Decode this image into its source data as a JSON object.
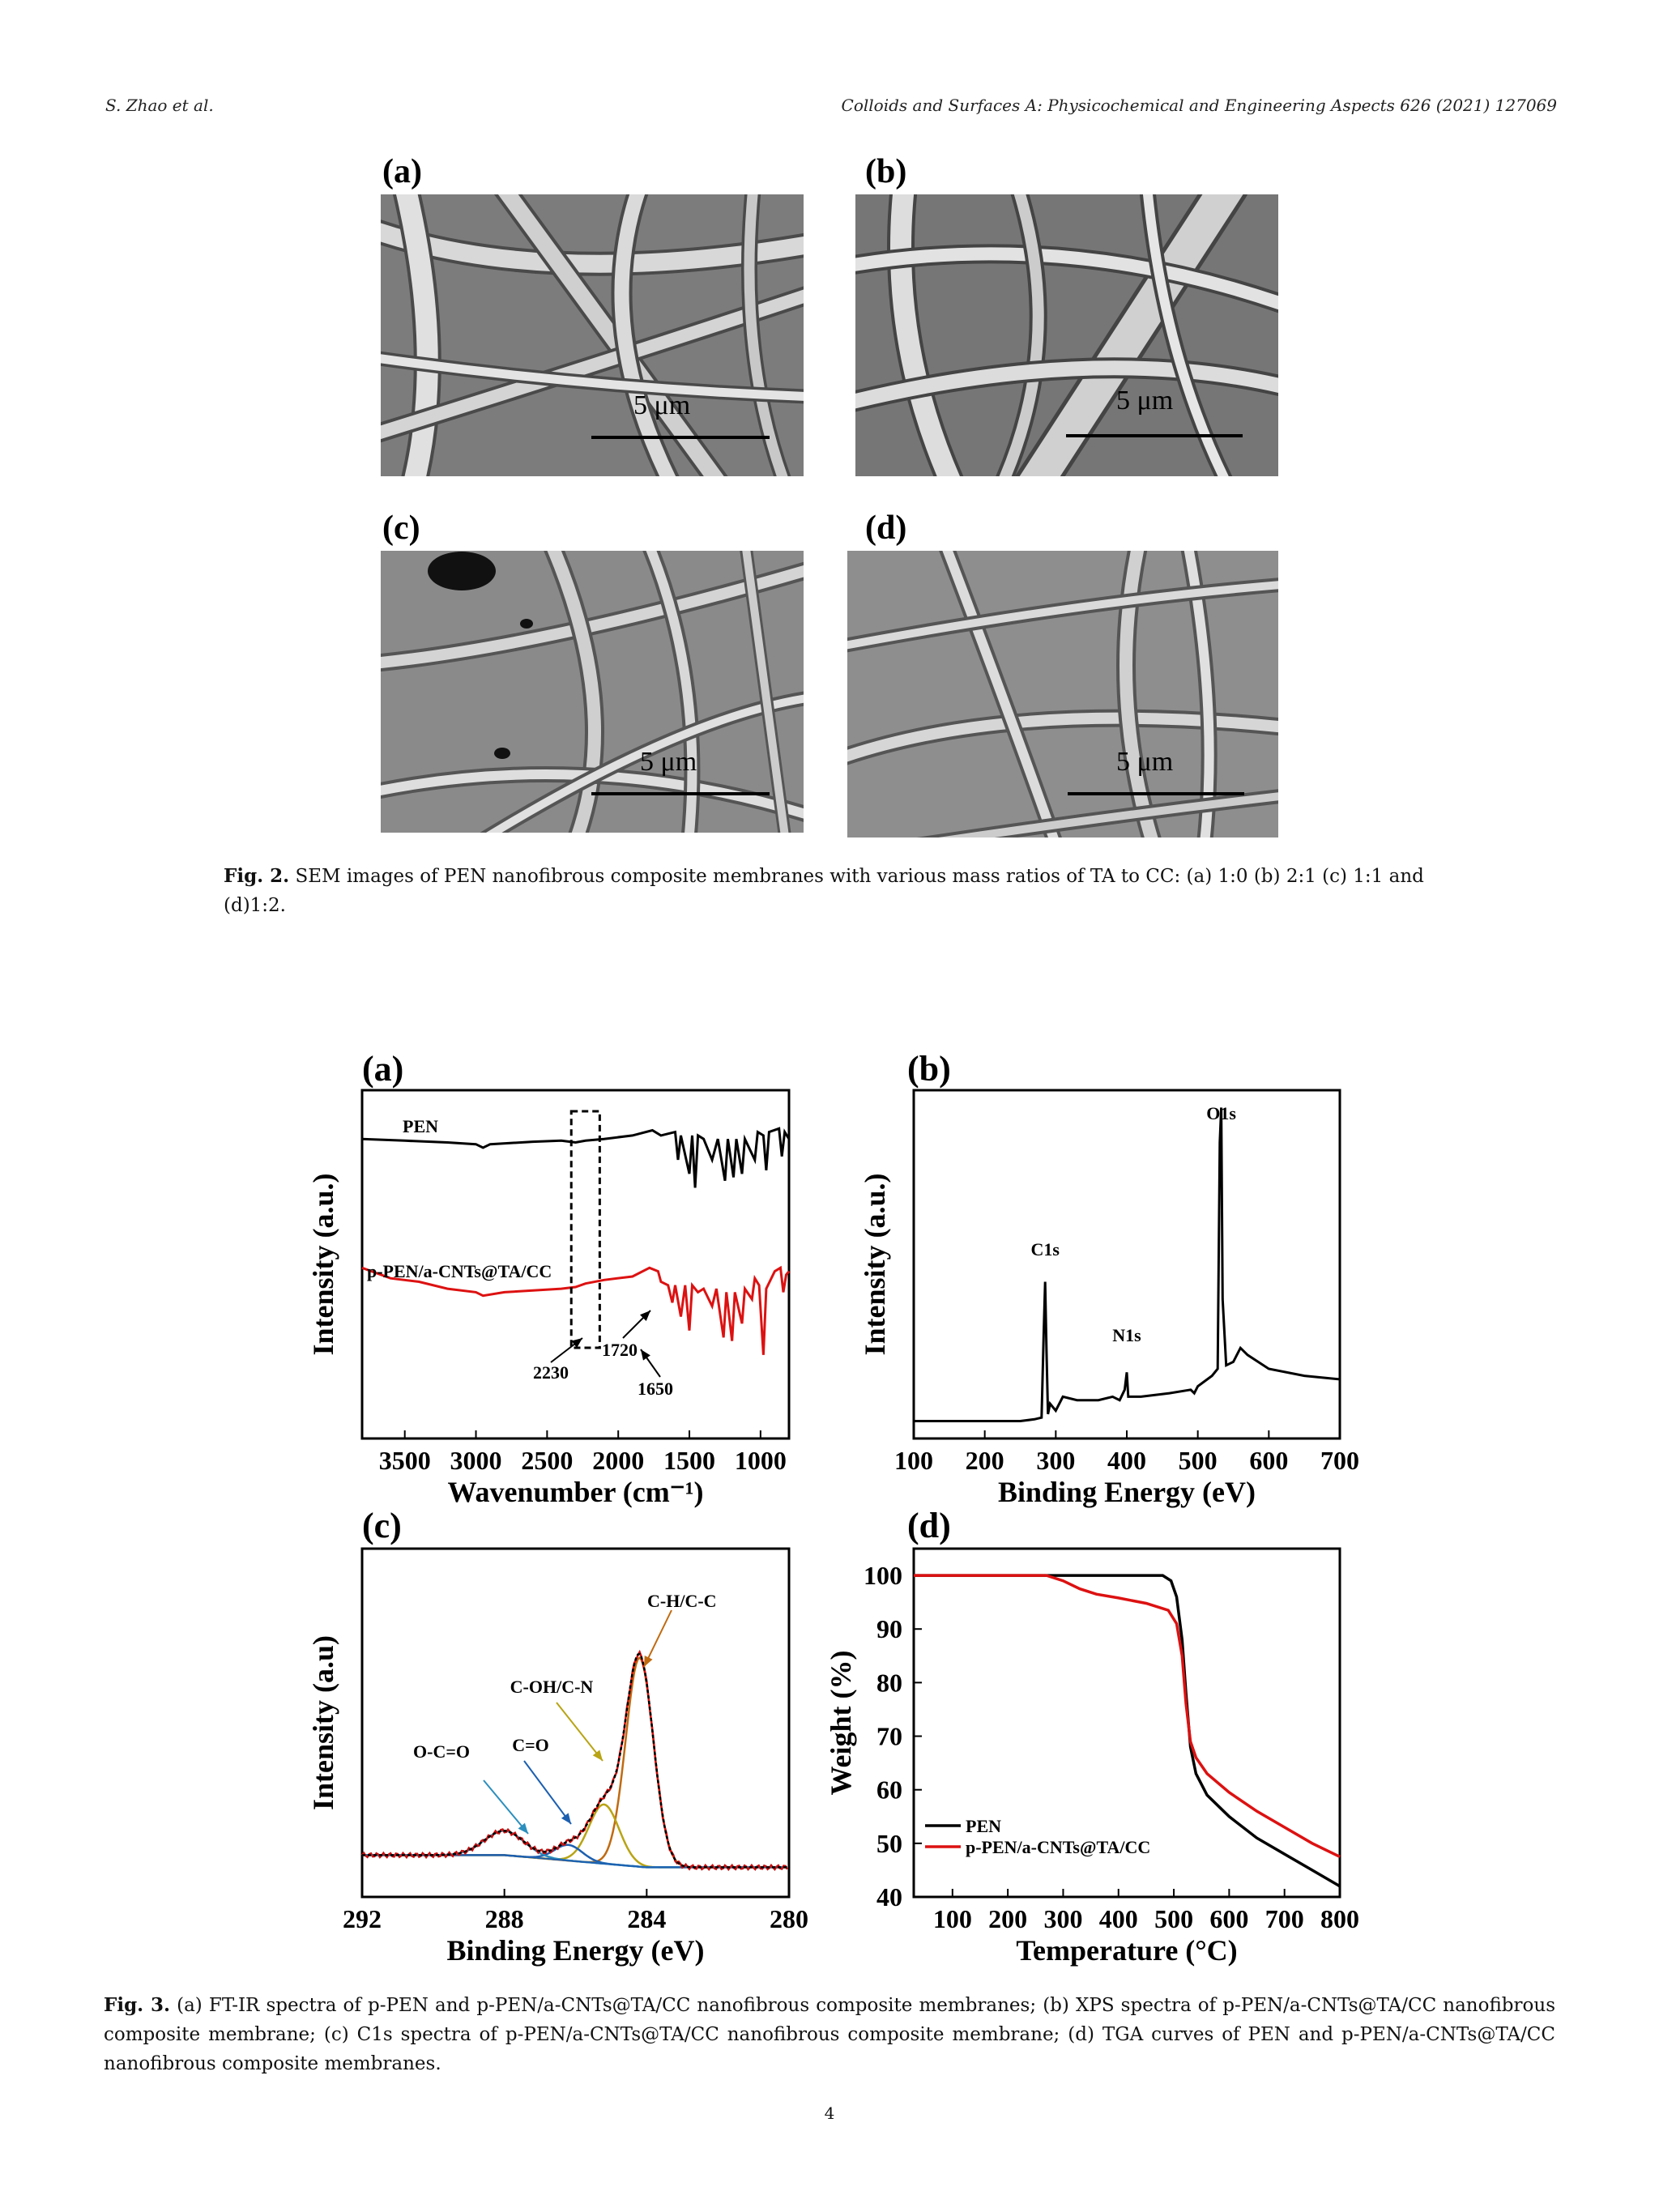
{
  "header": {
    "authors": "S. Zhao et al.",
    "journal": "Colloids and Surfaces A: Physicochemical and Engineering Aspects 626 (2021) 127069"
  },
  "fig2": {
    "panels": [
      {
        "label": "(a)",
        "scale": "5 μm"
      },
      {
        "label": "(b)",
        "scale": "5 μm"
      },
      {
        "label": "(c)",
        "scale": "5 μm"
      },
      {
        "label": "(d)",
        "scale": "5 μm"
      }
    ],
    "caption_label": "Fig. 2.",
    "caption_text": "SEM images of PEN nanofibrous composite membranes with various mass ratios of TA to CC: (a) 1:0 (b) 2:1 (c) 1:1 and (d)1:2."
  },
  "fig3": {
    "caption_label": "Fig. 3.",
    "caption_text": "(a) FT-IR spectra of p-PEN and p-PEN/a-CNTs@TA/CC nanofibrous composite membranes; (b) XPS spectra of p-PEN/a-CNTs@TA/CC nanofibrous composite membrane; (c) C1s spectra of p-PEN/a-CNTs@TA/CC nanofibrous composite membrane; (d) TGA curves of PEN and p-PEN/a-CNTs@TA/CC nanofibrous composite membranes."
  },
  "page_number": "4",
  "chart_data": [
    {
      "id": "a",
      "panel_label": "(a)",
      "type": "line",
      "xlabel": "Wavenumber (cm⁻¹)",
      "ylabel": "Intensity (a.u.)",
      "xlim": [
        3800,
        800
      ],
      "xticks": [
        3500,
        3000,
        2500,
        2000,
        1500,
        1000
      ],
      "series": [
        {
          "name": "PEN",
          "color": "#000000",
          "points": [
            [
              3800,
              0.86
            ],
            [
              3500,
              0.855
            ],
            [
              3200,
              0.85
            ],
            [
              3000,
              0.845
            ],
            [
              2950,
              0.835
            ],
            [
              2900,
              0.845
            ],
            [
              2600,
              0.852
            ],
            [
              2400,
              0.855
            ],
            [
              2300,
              0.85
            ],
            [
              2230,
              0.855
            ],
            [
              2100,
              0.86
            ],
            [
              1900,
              0.87
            ],
            [
              1760,
              0.885
            ],
            [
              1700,
              0.87
            ],
            [
              1600,
              0.88
            ],
            [
              1580,
              0.8
            ],
            [
              1560,
              0.87
            ],
            [
              1500,
              0.76
            ],
            [
              1480,
              0.87
            ],
            [
              1460,
              0.72
            ],
            [
              1440,
              0.87
            ],
            [
              1400,
              0.86
            ],
            [
              1340,
              0.8
            ],
            [
              1300,
              0.86
            ],
            [
              1250,
              0.74
            ],
            [
              1230,
              0.86
            ],
            [
              1190,
              0.75
            ],
            [
              1170,
              0.86
            ],
            [
              1130,
              0.76
            ],
            [
              1110,
              0.86
            ],
            [
              1040,
              0.8
            ],
            [
              1020,
              0.88
            ],
            [
              980,
              0.87
            ],
            [
              960,
              0.77
            ],
            [
              940,
              0.88
            ],
            [
              870,
              0.89
            ],
            [
              850,
              0.81
            ],
            [
              830,
              0.88
            ],
            [
              800,
              0.86
            ]
          ]
        },
        {
          "name": "p-PEN/a-CNTs@TA/CC",
          "color": "#dd1111",
          "points": [
            [
              3800,
              0.49
            ],
            [
              3600,
              0.46
            ],
            [
              3400,
              0.45
            ],
            [
              3200,
              0.43
            ],
            [
              3000,
              0.42
            ],
            [
              2950,
              0.41
            ],
            [
              2800,
              0.42
            ],
            [
              2600,
              0.425
            ],
            [
              2400,
              0.43
            ],
            [
              2300,
              0.435
            ],
            [
              2230,
              0.445
            ],
            [
              2100,
              0.455
            ],
            [
              1900,
              0.465
            ],
            [
              1780,
              0.49
            ],
            [
              1720,
              0.48
            ],
            [
              1700,
              0.45
            ],
            [
              1650,
              0.44
            ],
            [
              1620,
              0.39
            ],
            [
              1600,
              0.44
            ],
            [
              1560,
              0.35
            ],
            [
              1530,
              0.44
            ],
            [
              1500,
              0.31
            ],
            [
              1480,
              0.44
            ],
            [
              1440,
              0.42
            ],
            [
              1400,
              0.43
            ],
            [
              1340,
              0.38
            ],
            [
              1310,
              0.43
            ],
            [
              1260,
              0.29
            ],
            [
              1240,
              0.42
            ],
            [
              1200,
              0.28
            ],
            [
              1180,
              0.42
            ],
            [
              1130,
              0.33
            ],
            [
              1110,
              0.43
            ],
            [
              1060,
              0.4
            ],
            [
              1040,
              0.46
            ],
            [
              1010,
              0.44
            ],
            [
              980,
              0.24
            ],
            [
              960,
              0.43
            ],
            [
              900,
              0.48
            ],
            [
              860,
              0.49
            ],
            [
              840,
              0.42
            ],
            [
              820,
              0.47
            ],
            [
              800,
              0.48
            ]
          ]
        }
      ],
      "annotations": [
        "2230",
        "1720",
        "1650"
      ]
    },
    {
      "id": "b",
      "panel_label": "(b)",
      "type": "line",
      "xlabel": "Binding Energy (eV)",
      "ylabel": "Intensity (a.u.)",
      "xlim": [
        100,
        700
      ],
      "xticks": [
        100,
        200,
        300,
        400,
        500,
        600,
        700
      ],
      "series": [
        {
          "name": "",
          "color": "#000000",
          "points": [
            [
              100,
              0.05
            ],
            [
              150,
              0.05
            ],
            [
              200,
              0.05
            ],
            [
              250,
              0.05
            ],
            [
              270,
              0.055
            ],
            [
              280,
              0.06
            ],
            [
              283,
              0.3
            ],
            [
              285,
              0.45
            ],
            [
              287,
              0.25
            ],
            [
              289,
              0.07
            ],
            [
              292,
              0.1
            ],
            [
              300,
              0.08
            ],
            [
              310,
              0.12
            ],
            [
              330,
              0.11
            ],
            [
              360,
              0.11
            ],
            [
              380,
              0.12
            ],
            [
              390,
              0.11
            ],
            [
              397,
              0.14
            ],
            [
              400,
              0.19
            ],
            [
              402,
              0.12
            ],
            [
              420,
              0.12
            ],
            [
              460,
              0.13
            ],
            [
              490,
              0.14
            ],
            [
              495,
              0.13
            ],
            [
              500,
              0.15
            ],
            [
              520,
              0.18
            ],
            [
              528,
              0.2
            ],
            [
              531,
              0.85
            ],
            [
              533,
              0.95
            ],
            [
              535,
              0.4
            ],
            [
              540,
              0.21
            ],
            [
              550,
              0.22
            ],
            [
              560,
              0.26
            ],
            [
              570,
              0.24
            ],
            [
              600,
              0.2
            ],
            [
              650,
              0.18
            ],
            [
              700,
              0.17
            ]
          ]
        }
      ],
      "annotations": [
        "C1s",
        "N1s",
        "O1s"
      ]
    },
    {
      "id": "c",
      "panel_label": "(c)",
      "type": "line",
      "xlabel": "Binding Energy (eV)",
      "ylabel": "Intensity (a.u)",
      "xlim": [
        292,
        280
      ],
      "xticks": [
        292,
        288,
        284,
        280
      ],
      "series": [
        {
          "name": "raw",
          "color": "#cc1111"
        },
        {
          "name": "fit",
          "color": "#000000"
        },
        {
          "name": "C-H/C-C",
          "color": "#c06a10",
          "center": 284.2,
          "height": 0.6,
          "width": 0.55
        },
        {
          "name": "C-OH/C-N",
          "color": "#b8a414",
          "center": 285.2,
          "height": 0.17,
          "width": 0.6
        },
        {
          "name": "C=O",
          "color": "#1c5fb0",
          "center": 286.2,
          "height": 0.045,
          "width": 0.55
        },
        {
          "name": "O-C=O",
          "color": "#2c8fbd",
          "center": 288.0,
          "height": 0.07,
          "width": 0.8
        }
      ],
      "annotations": [
        "O-C=O",
        "C=O",
        "C-OH/C-N",
        "C-H/C-C"
      ]
    },
    {
      "id": "d",
      "panel_label": "(d)",
      "type": "line",
      "xlabel": "Temperature (°C)",
      "ylabel": "Weight (%)",
      "xlim": [
        30,
        800
      ],
      "ylim": [
        40,
        105
      ],
      "xticks": [
        100,
        200,
        300,
        400,
        500,
        600,
        700,
        800
      ],
      "yticks": [
        40,
        50,
        60,
        70,
        80,
        90,
        100
      ],
      "legend_position": "bottom-left",
      "series": [
        {
          "name": "PEN",
          "color": "#000000",
          "points": [
            [
              30,
              100
            ],
            [
              300,
              100
            ],
            [
              480,
              100
            ],
            [
              495,
              99
            ],
            [
              505,
              96
            ],
            [
              515,
              88
            ],
            [
              522,
              78
            ],
            [
              530,
              68
            ],
            [
              540,
              63
            ],
            [
              560,
              59
            ],
            [
              600,
              55
            ],
            [
              650,
              51
            ],
            [
              700,
              48
            ],
            [
              750,
              45
            ],
            [
              800,
              42
            ]
          ]
        },
        {
          "name": "p-PEN/a-CNTs@TA/CC",
          "color": "#dd1111",
          "points": [
            [
              30,
              100
            ],
            [
              270,
              100
            ],
            [
              300,
              99
            ],
            [
              330,
              97.5
            ],
            [
              360,
              96.5
            ],
            [
              400,
              95.8
            ],
            [
              450,
              94.8
            ],
            [
              490,
              93.5
            ],
            [
              505,
              91
            ],
            [
              515,
              85
            ],
            [
              522,
              76
            ],
            [
              530,
              69
            ],
            [
              540,
              66
            ],
            [
              560,
              63
            ],
            [
              600,
              59.5
            ],
            [
              650,
              56
            ],
            [
              700,
              53
            ],
            [
              750,
              50
            ],
            [
              800,
              47.5
            ]
          ]
        }
      ]
    }
  ]
}
